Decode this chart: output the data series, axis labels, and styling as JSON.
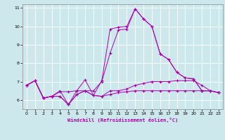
{
  "xlabel": "Windchill (Refroidissement éolien,°C)",
  "background_color": "#cde8ec",
  "grid_color": "#b0d8dc",
  "line_color": "#aa00aa",
  "xlim": [
    -0.5,
    23.5
  ],
  "ylim": [
    5.5,
    11.2
  ],
  "xticks": [
    0,
    1,
    2,
    3,
    4,
    5,
    6,
    7,
    8,
    9,
    10,
    11,
    12,
    13,
    14,
    15,
    16,
    17,
    18,
    19,
    20,
    21,
    22,
    23
  ],
  "yticks": [
    6,
    7,
    8,
    9,
    10,
    11
  ],
  "series": [
    [
      6.8,
      7.05,
      6.1,
      6.2,
      6.2,
      5.75,
      6.3,
      6.5,
      6.25,
      6.2,
      6.3,
      6.4,
      6.45,
      6.5,
      6.5,
      6.5,
      6.5,
      6.5,
      6.5,
      6.5,
      6.5,
      6.5,
      6.5,
      6.4
    ],
    [
      6.8,
      7.05,
      6.1,
      6.2,
      6.45,
      6.45,
      6.5,
      7.1,
      6.25,
      7.05,
      9.85,
      9.95,
      10.0,
      10.95,
      10.4,
      10.0,
      8.5,
      8.2,
      7.5,
      7.2,
      7.15,
      6.5,
      6.5,
      6.4
    ],
    [
      6.8,
      7.05,
      6.1,
      6.2,
      6.5,
      5.75,
      6.5,
      6.5,
      6.5,
      7.0,
      8.55,
      9.8,
      9.85,
      10.95,
      10.4,
      10.0,
      8.5,
      8.2,
      7.5,
      7.2,
      7.15,
      6.5,
      6.5,
      6.4
    ],
    [
      6.8,
      7.05,
      6.1,
      6.2,
      6.2,
      5.75,
      6.3,
      6.5,
      6.25,
      6.2,
      6.5,
      6.5,
      6.6,
      6.8,
      6.9,
      7.0,
      7.0,
      7.0,
      7.05,
      7.05,
      7.05,
      6.8,
      6.5,
      6.4
    ]
  ]
}
